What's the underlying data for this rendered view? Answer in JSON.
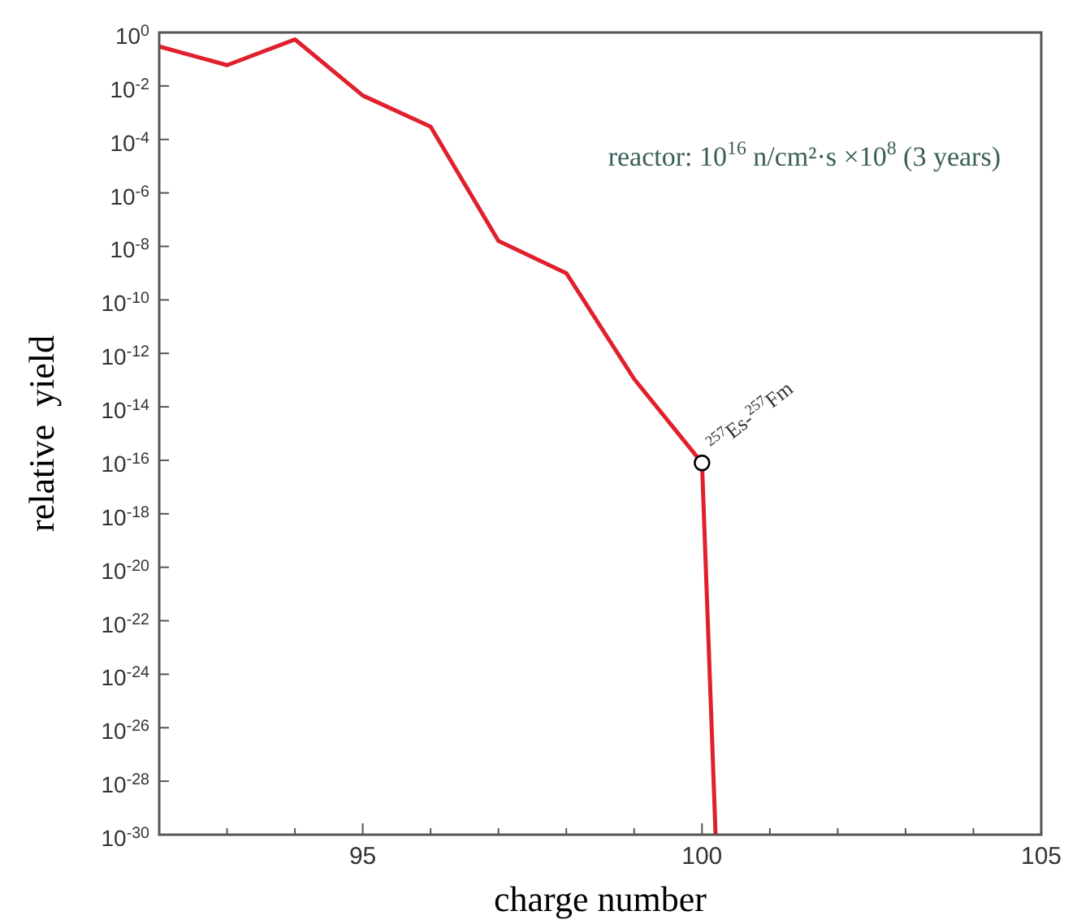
{
  "chart_data": {
    "type": "line",
    "xlabel": "charge number",
    "ylabel": "relative  yield",
    "log": "y",
    "xlim": [
      92,
      105
    ],
    "ylim": [
      1e-30,
      1
    ],
    "xticks": [
      {
        "value": 93,
        "label": null
      },
      {
        "value": 94,
        "label": null
      },
      95,
      {
        "value": 96,
        "label": null
      },
      {
        "value": 97,
        "label": null
      },
      {
        "value": 98,
        "label": null
      },
      {
        "value": 99,
        "label": null
      },
      100,
      {
        "value": 101,
        "label": null
      },
      {
        "value": 102,
        "label": null
      },
      {
        "value": 103,
        "label": null
      },
      {
        "value": 104,
        "label": null
      },
      105
    ],
    "yticks": [
      {
        "value": 1,
        "label": "10$^{0}$"
      },
      {
        "value": 0.01,
        "label": "10$^{-2}$"
      },
      {
        "value": 0.0001,
        "label": "10$^{-4}$"
      },
      {
        "value": 1e-06,
        "label": "10$^{-6}$"
      },
      {
        "value": 1e-08,
        "label": "10$^{-8}$"
      },
      {
        "value": 1e-10,
        "label": "10$^{-10}$"
      },
      {
        "value": 1e-12,
        "label": "10$^{-12}$"
      },
      {
        "value": 1e-14,
        "label": "10$^{-14}$"
      },
      {
        "value": 1e-16,
        "label": "10$^{-16}$"
      },
      {
        "value": 1e-18,
        "label": "10$^{-18}$"
      },
      {
        "value": 1e-20,
        "label": "10$^{-20}$"
      },
      {
        "value": 1e-22,
        "label": "10$^{-22}$"
      },
      {
        "value": 1e-24,
        "label": "10$^{-24}$"
      },
      {
        "value": 1e-26,
        "label": "10$^{-26}$"
      },
      {
        "value": 1e-28,
        "label": "10$^{-28}$"
      },
      {
        "value": 1e-30,
        "label": "10$^{-30}$"
      }
    ],
    "series": [
      {
        "color": "#e0202c",
        "marker": "none",
        "x": [
          92,
          93,
          94,
          95,
          96,
          97,
          98,
          99,
          100,
          100.2
        ],
        "values": [
          0.3,
          0.06,
          0.55,
          0.0044,
          0.0003,
          1.6e-08,
          1e-09,
          1.1e-13,
          8e-17,
          1e-30
        ]
      },
      {
        "type": "scatter",
        "color": "#000000",
        "marker": "circle",
        "x": [
          100
        ],
        "values": [
          8e-17
        ]
      }
    ],
    "annotations": [
      {
        "text": "$^{257}$Es-$^{257}$Fm",
        "x": 100,
        "y": 8e-17
      },
      "reactor: 10$^{16}$ n/cm²·s ×10$^{8}$ (3 years)"
    ]
  }
}
